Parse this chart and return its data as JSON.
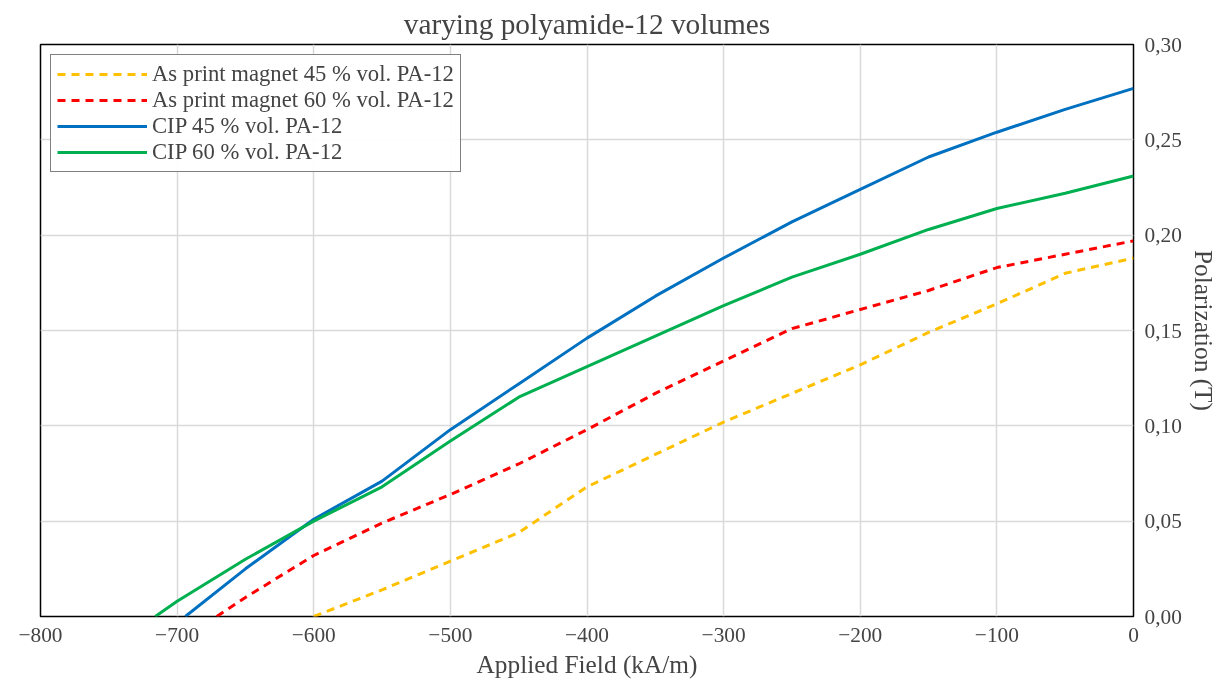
{
  "chart_data": {
    "type": "line",
    "title": "varying polyamide-12 volumes",
    "xlabel": "Applied Field (kA/m)",
    "ylabel": "Polarization (T)",
    "xlim": [
      -800,
      0
    ],
    "xticks": [
      -800,
      -700,
      -600,
      -500,
      -400,
      -300,
      -200,
      -100,
      0
    ],
    "ylim": [
      0,
      0.3
    ],
    "yticks": [
      {
        "value": 0,
        "label": "0,00"
      },
      {
        "value": 0.05,
        "label": "0,05"
      },
      {
        "value": 0.1,
        "label": "0,10"
      },
      {
        "value": 0.15,
        "label": "0,15"
      },
      {
        "value": 0.2,
        "label": "0,20"
      },
      {
        "value": 0.25,
        "label": "0,25"
      },
      {
        "value": 0.3,
        "label": "0,30"
      }
    ],
    "grid": true,
    "legend": "top left",
    "series": [
      {
        "name": "As print magnet 45 % vol. PA-12",
        "color": "#ffc000",
        "line_style": "dashed",
        "x": [
          -600,
          -550,
          -500,
          -450,
          -400,
          -350,
          -300,
          -250,
          -200,
          -150,
          -100,
          -50,
          0
        ],
        "values": [
          0,
          0.014,
          0.029,
          0.044,
          0.068,
          0.085,
          0.102,
          0.117,
          0.132,
          0.149,
          0.164,
          0.18,
          0.188
        ]
      },
      {
        "name": "As print magnet 60 % vol. PA-12",
        "color": "#ff0000",
        "line_style": "dashed",
        "x": [
          -671,
          -650,
          -600,
          -550,
          -500,
          -450,
          -400,
          -350,
          -300,
          -250,
          -200,
          -150,
          -100,
          -50,
          0
        ],
        "values": [
          0,
          0.01,
          0.032,
          0.049,
          0.064,
          0.08,
          0.098,
          0.117,
          0.134,
          0.151,
          0.161,
          0.171,
          0.183,
          0.19,
          0.197
        ]
      },
      {
        "name": "CIP 45 % vol. PA-12",
        "color": "#0070c0",
        "line_style": "solid",
        "x": [
          -694,
          -650,
          -600,
          -550,
          -500,
          -450,
          -400,
          -350,
          -300,
          -250,
          -200,
          -150,
          -100,
          -50,
          0
        ],
        "values": [
          0,
          0.025,
          0.051,
          0.071,
          0.098,
          0.122,
          0.146,
          0.168,
          0.188,
          0.207,
          0.224,
          0.241,
          0.254,
          0.266,
          0.277
        ]
      },
      {
        "name": "CIP 60 % vol. PA-12",
        "color": "#00b050",
        "line_style": "solid",
        "x": [
          -716,
          -700,
          -650,
          -600,
          -550,
          -500,
          -450,
          -400,
          -350,
          -300,
          -250,
          -200,
          -150,
          -100,
          -50,
          0
        ],
        "values": [
          0,
          0.008,
          0.03,
          0.05,
          0.068,
          0.092,
          0.115,
          0.131,
          0.147,
          0.163,
          0.178,
          0.19,
          0.203,
          0.214,
          0.222,
          0.231
        ]
      }
    ]
  }
}
